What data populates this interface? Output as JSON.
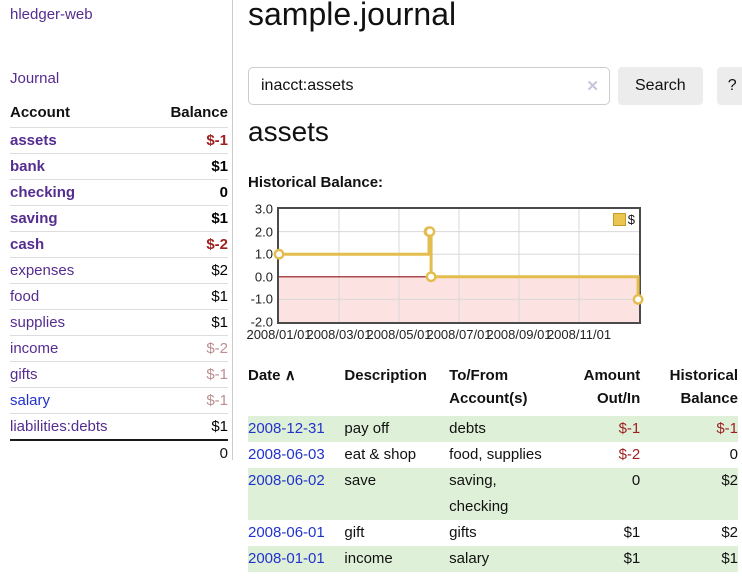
{
  "app": {
    "title": "hledger-web"
  },
  "sidebar": {
    "journal_label": "Journal",
    "accounts_table": {
      "header_account": "Account",
      "header_balance": "Balance",
      "rows": [
        {
          "name": "assets",
          "indent": 1,
          "bold": true,
          "link": "purple",
          "balance": "$-1",
          "balance_style": "neg-strong"
        },
        {
          "name": "bank",
          "indent": 2,
          "bold": true,
          "link": "purple",
          "balance": "$1",
          "balance_style": "pos-strong"
        },
        {
          "name": "checking",
          "indent": 3,
          "bold": true,
          "link": "purple",
          "balance": "0",
          "balance_style": "pos-strong"
        },
        {
          "name": "saving",
          "indent": 3,
          "bold": true,
          "link": "purple",
          "balance": "$1",
          "balance_style": "pos-strong"
        },
        {
          "name": "cash",
          "indent": 2,
          "bold": true,
          "link": "purple",
          "balance": "$-2",
          "balance_style": "neg-strong"
        },
        {
          "name": "expenses",
          "indent": 1,
          "bold": false,
          "link": "purple",
          "balance": "$2",
          "balance_style": "pos"
        },
        {
          "name": "food",
          "indent": 2,
          "bold": false,
          "link": "purple",
          "balance": "$1",
          "balance_style": "pos"
        },
        {
          "name": "supplies",
          "indent": 2,
          "bold": false,
          "link": "purple",
          "balance": "$1",
          "balance_style": "pos"
        },
        {
          "name": "income",
          "indent": 1,
          "bold": false,
          "link": "purple",
          "balance": "$-2",
          "balance_style": "neg-muted"
        },
        {
          "name": "gifts",
          "indent": 2,
          "bold": false,
          "link": "purple",
          "balance": "$-1",
          "balance_style": "neg-muted"
        },
        {
          "name": "salary",
          "indent": 2,
          "bold": false,
          "link": "blue",
          "balance": "$-1",
          "balance_style": "neg-muted"
        },
        {
          "name": "liabilities:debts",
          "indent": 1,
          "bold": false,
          "link": "purple",
          "balance": "$1",
          "balance_style": "pos"
        }
      ],
      "total": "0"
    }
  },
  "main": {
    "title": "sample.journal",
    "search": {
      "value": "inacct:assets",
      "clear_icon": "✕",
      "search_label": "Search",
      "help_label": "?"
    },
    "account_heading": "assets",
    "section_label": "Historical Balance:"
  },
  "chart_data": {
    "type": "line",
    "step": true,
    "title": "Historical Balance:",
    "xlabel": "",
    "ylabel": "",
    "x_unit": "months since 2008-01-01",
    "x_range": [
      0,
      12
    ],
    "y_range": [
      -2,
      3
    ],
    "series": [
      {
        "name": "$",
        "points": [
          {
            "date": "2008-01-01",
            "x": 0,
            "y": 1
          },
          {
            "date": "2008-06-01",
            "x": 5,
            "y": 2
          },
          {
            "date": "2008-06-02",
            "x": 5.03,
            "y": 2
          },
          {
            "date": "2008-06-03",
            "x": 5.07,
            "y": 0
          },
          {
            "date": "2008-12-31",
            "x": 11.97,
            "y": -1
          }
        ]
      }
    ],
    "x_ticks": [
      {
        "pos": 0,
        "label": "2008/01/01"
      },
      {
        "pos": 2,
        "label": "2008/03/01"
      },
      {
        "pos": 4,
        "label": "2008/05/01"
      },
      {
        "pos": 6,
        "label": "2008/07/01"
      },
      {
        "pos": 8,
        "label": "2008/09/01"
      },
      {
        "pos": 10,
        "label": "2008/11/01"
      }
    ],
    "y_ticks": [
      3,
      2,
      1,
      0,
      -1,
      -2
    ],
    "grid": true,
    "legend": {
      "label": "$",
      "position": "top-right"
    },
    "colors": {
      "line": "#e3bd4e",
      "marker_fill": "#ffffff",
      "negative_region": "#fde2e2",
      "zero_line": "#8f1416",
      "grid": "#d8d8d8",
      "border": "#4a4a4a",
      "legend_fill": "#eac54f",
      "legend_border": "#c49b2a"
    }
  },
  "register": {
    "headers": {
      "date": {
        "label": "Date",
        "sort_icon": "∧"
      },
      "description": "Description",
      "tofrom": [
        "To/From",
        "Account(s)"
      ],
      "amount": [
        "Amount",
        "Out/In"
      ],
      "balance": [
        "Historical",
        "Balance"
      ]
    },
    "rows": [
      {
        "date": "2008-12-31",
        "description": "pay off",
        "accounts": [
          "debts"
        ],
        "amount": "$-1",
        "amount_neg": true,
        "balance": "$-1",
        "balance_neg": true
      },
      {
        "date": "2008-06-03",
        "description": "eat & shop",
        "accounts": [
          "food, supplies"
        ],
        "amount": "$-2",
        "amount_neg": true,
        "balance": "0",
        "balance_neg": false
      },
      {
        "date": "2008-06-02",
        "description": "save",
        "accounts": [
          "saving,",
          "checking"
        ],
        "amount": "0",
        "amount_neg": false,
        "balance": "$2",
        "balance_neg": false
      },
      {
        "date": "2008-06-01",
        "description": "gift",
        "accounts": [
          "gifts"
        ],
        "amount": "$1",
        "amount_neg": false,
        "balance": "$2",
        "balance_neg": false
      },
      {
        "date": "2008-01-01",
        "description": "income",
        "accounts": [
          "salary"
        ],
        "amount": "$1",
        "amount_neg": false,
        "balance": "$1",
        "balance_neg": false
      }
    ]
  }
}
